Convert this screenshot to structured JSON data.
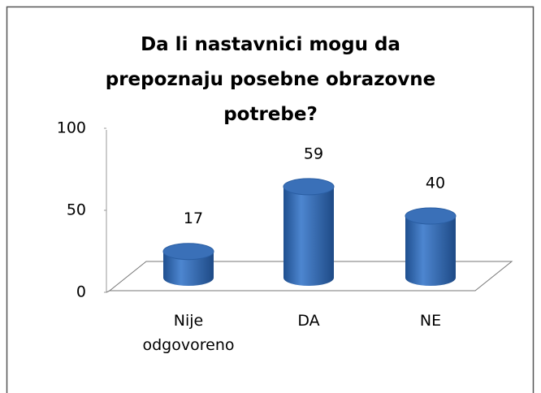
{
  "chart_data": {
    "type": "bar",
    "title": "Da li nastavnici mogu da prepoznaju posebne obrazovne potrebe?",
    "categories": [
      "Nije odgovoreno",
      "DA",
      "NE"
    ],
    "values": [
      17,
      59,
      40
    ],
    "color": "#3a70b8",
    "ylim": [
      0,
      100
    ],
    "yticks": [
      0,
      50,
      100
    ]
  }
}
